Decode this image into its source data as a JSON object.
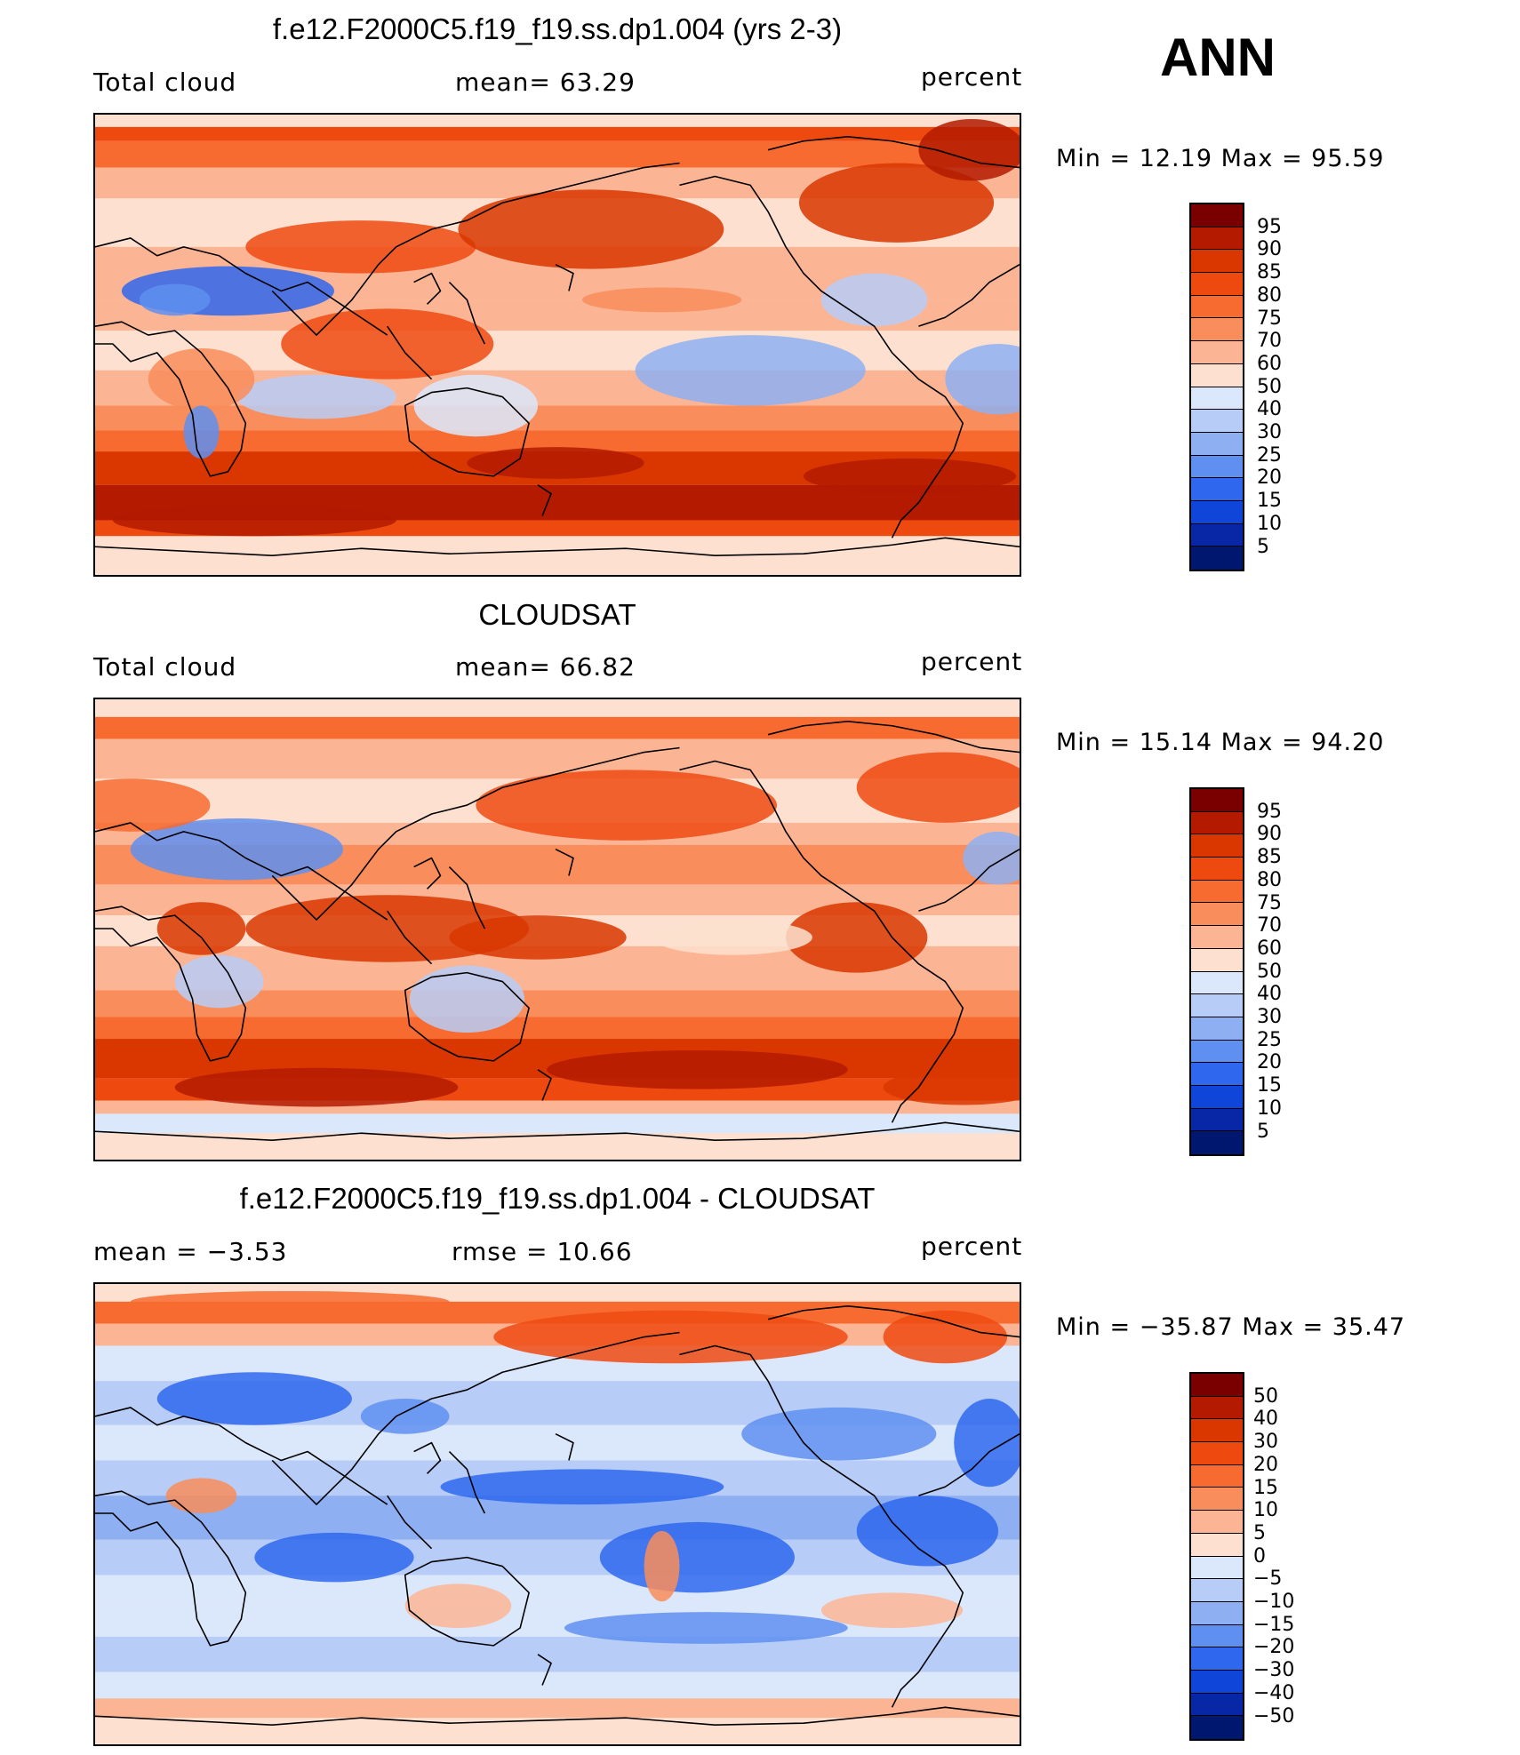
{
  "header": {
    "season": "ANN"
  },
  "palette": {
    "levels_abs": [
      "95",
      "90",
      "85",
      "80",
      "75",
      "70",
      "60",
      "50",
      "40",
      "30",
      "25",
      "20",
      "15",
      "10",
      "5"
    ],
    "levels_diff": [
      "50",
      "40",
      "30",
      "20",
      "15",
      "10",
      "5",
      "0",
      "−5",
      "−10",
      "−15",
      "−20",
      "−30",
      "−40",
      "−50"
    ],
    "colors": [
      "#7a0000",
      "#b31a00",
      "#d93600",
      "#ee4a10",
      "#f76b30",
      "#f98d5b",
      "#fbb595",
      "#fde0cf",
      "#dbe8fb",
      "#b7cdf7",
      "#8eb0f2",
      "#5f8ff0",
      "#2f67ee",
      "#0f45d9",
      "#0727a6",
      "#001770"
    ]
  },
  "panels": [
    {
      "id": "model",
      "title": "f.e12.F2000C5.f19_f19.ss.dp1.004 (yrs 2-3)",
      "left_label": "Total cloud",
      "center_label": "mean=   63.29",
      "right_label": "percent",
      "minmax": "Min =    12.19  Max =    95.59",
      "map_kind": "model"
    },
    {
      "id": "obs",
      "title": "CLOUDSAT",
      "left_label": "Total cloud",
      "center_label": "mean=   66.82",
      "right_label": "percent",
      "minmax": "Min =    15.14  Max =    94.20",
      "map_kind": "obs"
    },
    {
      "id": "diff",
      "title": "f.e12.F2000C5.f19_f19.ss.dp1.004 - CLOUDSAT",
      "left_label": "mean =    −3.53",
      "center_label": "rmse =    10.66",
      "right_label": "percent",
      "minmax": "Min =  −35.87  Max =    35.47",
      "map_kind": "diff"
    }
  ]
}
